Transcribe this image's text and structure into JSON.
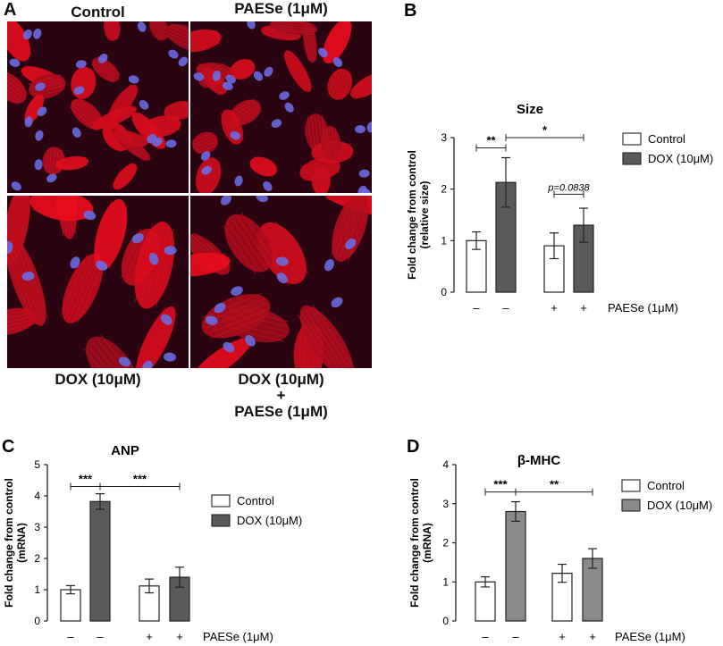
{
  "panel_a": {
    "letter": "A",
    "images": [
      {
        "title": "Control",
        "image": "fluorescence micrograph of cardiomyocytes with red actin and blue nuclei"
      },
      {
        "title": "PAESe (1μM)",
        "image": "fluorescence micrograph of cardiomyocytes with red actin and blue nuclei"
      },
      {
        "title": "DOX (10μM)",
        "image": "fluorescence micrograph of enlarged cardiomyocytes with red actin striations and blue nuclei"
      },
      {
        "title_line1": "DOX (10μM)",
        "title_line2": "+",
        "title_line3": "PAESe (1μM)",
        "image": "fluorescence micrograph of cardiomyocytes with red actin and blue nuclei"
      }
    ]
  },
  "colors": {
    "control_fill": "#ffffff",
    "dox_fill_dark": "#5a5a5a",
    "dox_fill_gray": "#8a8a8a",
    "actin_red": "#d8101c",
    "nuclei_blue": "#6a6ae0"
  },
  "chart_data": [
    {
      "panel": "B",
      "type": "bar",
      "title": "Size",
      "ylabel_line1": "Fold change from control",
      "ylabel_line2": "(relative size)",
      "ylim": [
        0,
        3
      ],
      "yticks": [
        "0",
        "1",
        "2",
        "3"
      ],
      "bars": [
        {
          "series": "Control",
          "value": 1.0,
          "err": 0.17,
          "paese": "–"
        },
        {
          "series": "DOX (10μM)",
          "value": 2.13,
          "err": 0.48,
          "paese": "–"
        },
        {
          "series": "Control",
          "value": 0.9,
          "err": 0.25,
          "paese": "+"
        },
        {
          "series": "DOX (10μM)",
          "value": 1.3,
          "err": 0.33,
          "paese": "+"
        }
      ],
      "xlabel": "PAESe (1μM)",
      "legend": [
        "Control",
        "DOX (10μM)"
      ],
      "significance": [
        {
          "from": 0,
          "to": 1,
          "label": "**",
          "level": 2.8,
          "italic": false
        },
        {
          "from": 1,
          "to": 3,
          "label": "*",
          "level": 3.0,
          "italic": false
        },
        {
          "from": 2,
          "to": 3,
          "label": "p=0.0838",
          "level": 1.9,
          "italic": true
        }
      ]
    },
    {
      "panel": "C",
      "type": "bar",
      "title": "ANP",
      "ylabel_line1": "Fold change from control",
      "ylabel_line2": "(mRNA)",
      "ylim": [
        0,
        5
      ],
      "yticks": [
        "0",
        "1",
        "2",
        "3",
        "4",
        "5"
      ],
      "bars": [
        {
          "series": "Control",
          "value": 1.0,
          "err": 0.13,
          "paese": "–"
        },
        {
          "series": "DOX (10μM)",
          "value": 3.82,
          "err": 0.25,
          "paese": "–"
        },
        {
          "series": "Control",
          "value": 1.12,
          "err": 0.22,
          "paese": "+"
        },
        {
          "series": "DOX (10μM)",
          "value": 1.4,
          "err": 0.32,
          "paese": "+"
        }
      ],
      "xlabel": "PAESe (1μM)",
      "legend": [
        "Control",
        "DOX (10μM)"
      ],
      "significance": [
        {
          "from": 0,
          "to": 1,
          "label": "***",
          "level": 4.3,
          "italic": false
        },
        {
          "from": 1,
          "to": 3,
          "label": "***",
          "level": 4.3,
          "italic": false
        }
      ]
    },
    {
      "panel": "D",
      "type": "bar",
      "title": "β-MHC",
      "ylabel_line1": "Fold change from control",
      "ylabel_line2": "(mRNA)",
      "ylim": [
        0,
        4
      ],
      "yticks": [
        "0",
        "1",
        "2",
        "3",
        "4"
      ],
      "bars": [
        {
          "series": "Control",
          "value": 1.0,
          "err": 0.13,
          "paese": "–"
        },
        {
          "series": "DOX (10μM)",
          "value": 2.8,
          "err": 0.25,
          "paese": "–"
        },
        {
          "series": "Control",
          "value": 1.22,
          "err": 0.23,
          "paese": "+"
        },
        {
          "series": "DOX (10μM)",
          "value": 1.6,
          "err": 0.25,
          "paese": "+"
        }
      ],
      "xlabel": "PAESe (1μM)",
      "legend": [
        "Control",
        "DOX (10μM)"
      ],
      "significance": [
        {
          "from": 0,
          "to": 1,
          "label": "***",
          "level": 3.3,
          "italic": false
        },
        {
          "from": 1,
          "to": 3,
          "label": "**",
          "level": 3.3,
          "italic": false
        }
      ]
    }
  ]
}
